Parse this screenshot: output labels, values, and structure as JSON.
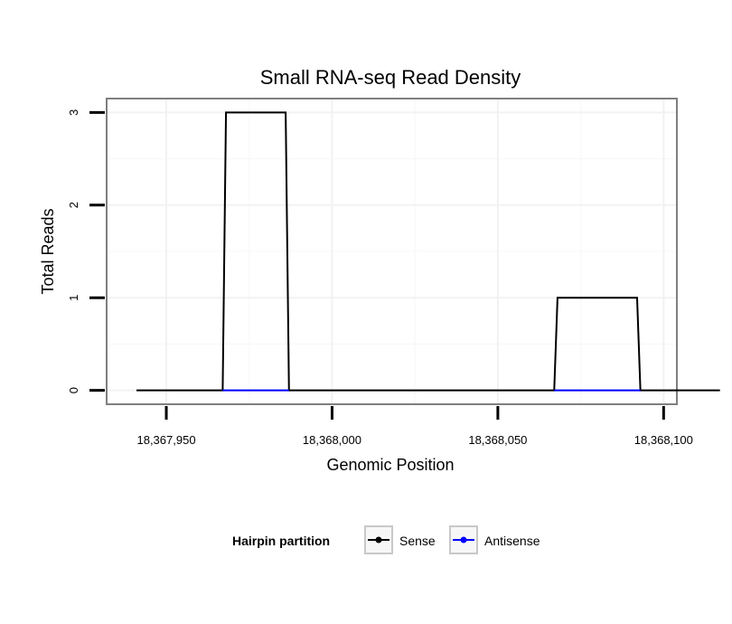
{
  "chart_data": {
    "type": "line",
    "title": "Small RNA-seq Read Density",
    "xlabel": "Genomic Position",
    "ylabel": "Total Reads",
    "xlim": [
      18367932,
      18368104
    ],
    "ylim": [
      -0.15,
      3.15
    ],
    "x_ticks": [
      18367950,
      18368000,
      18368050,
      18368100
    ],
    "x_tick_labels": [
      "18,367,950",
      "18,368,000",
      "18,368,050",
      "18,368,100"
    ],
    "y_ticks": [
      0,
      1,
      2,
      3
    ],
    "y_tick_labels": [
      "0",
      "1",
      "2",
      "3"
    ],
    "grid": true,
    "legend": {
      "title": "Hairpin partition",
      "position": "bottom"
    },
    "series": [
      {
        "name": "Sense",
        "color": "#000000",
        "x": [
          18367941,
          18367967,
          18367968,
          18367986,
          18367987,
          18368067,
          18368068,
          18368092,
          18368093,
          18368117
        ],
        "y": [
          0,
          0,
          3,
          3,
          0,
          0,
          1,
          1,
          0,
          0
        ]
      },
      {
        "name": "Antisense",
        "color": "#0000ff",
        "x": [
          18367967,
          18367987
        ],
        "y": [
          0,
          0
        ]
      },
      {
        "name": "Antisense",
        "color": "#0000ff",
        "x": [
          18368067,
          18368093
        ],
        "y": [
          0,
          0
        ]
      }
    ]
  }
}
